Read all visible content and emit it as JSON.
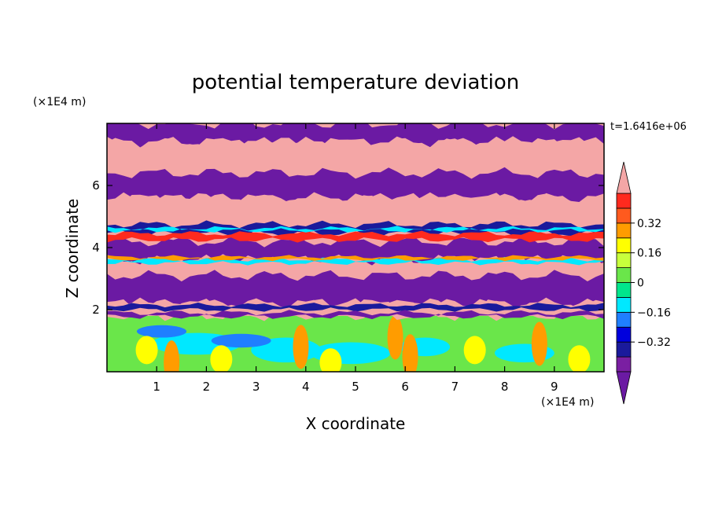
{
  "chart_data": {
    "type": "heatmap",
    "title": "potential temperature deviation",
    "xlabel": "X coordinate",
    "ylabel": "Z coordinate",
    "x_unit": "(×1E4 m)",
    "y_unit": "(×1E4 m)",
    "time_label": "t=1.6416e+06",
    "xlim": [
      0,
      10
    ],
    "ylim": [
      0,
      8
    ],
    "x_ticks": [
      1,
      2,
      3,
      4,
      5,
      6,
      7,
      8,
      9
    ],
    "y_ticks": [
      2,
      4,
      6
    ],
    "grid": false,
    "colorbar": {
      "position": "right",
      "tick_labels": [
        "0.32",
        "0.16",
        "0",
        "-0.16",
        "-0.32"
      ],
      "tick_values": [
        0.32,
        0.16,
        0,
        -0.16,
        -0.32
      ],
      "levels": [
        {
          "min": -0.48,
          "max": -0.4,
          "color": "#7a1fa2"
        },
        {
          "min": -0.4,
          "max": -0.32,
          "color": "#1a1a9c"
        },
        {
          "min": -0.32,
          "max": -0.24,
          "color": "#0000dd"
        },
        {
          "min": -0.24,
          "max": -0.16,
          "color": "#1f7fff"
        },
        {
          "min": -0.16,
          "max": -0.08,
          "color": "#00e8ff"
        },
        {
          "min": -0.08,
          "max": 0.0,
          "color": "#00e68c"
        },
        {
          "min": 0.0,
          "max": 0.08,
          "color": "#6ae64a"
        },
        {
          "min": 0.08,
          "max": 0.16,
          "color": "#c8ff3c"
        },
        {
          "min": 0.16,
          "max": 0.24,
          "color": "#ffff00"
        },
        {
          "min": 0.24,
          "max": 0.32,
          "color": "#ff9c00"
        },
        {
          "min": 0.32,
          "max": 0.4,
          "color": "#ff5a1e"
        },
        {
          "min": 0.4,
          "max": 0.48,
          "color": "#ff2a1e"
        }
      ],
      "under_color": "#6b1aa3",
      "over_color": "#f4a6a6"
    },
    "z_layers": [
      {
        "z_min": 7.4,
        "z_max": 8.0,
        "dominant": "purple",
        "value": -0.5
      },
      {
        "z_min": 6.4,
        "z_max": 7.4,
        "dominant": "pink",
        "value": 0.5
      },
      {
        "z_min": 5.6,
        "z_max": 6.4,
        "dominant": "purple",
        "value": -0.5
      },
      {
        "z_min": 4.8,
        "z_max": 5.6,
        "dominant": "pink",
        "value": 0.5
      },
      {
        "z_min": 4.2,
        "z_max": 4.8,
        "dominant": "mixed red/blue",
        "value": 0.1
      },
      {
        "z_min": 3.6,
        "z_max": 4.2,
        "dominant": "purple",
        "value": -0.5
      },
      {
        "z_min": 3.1,
        "z_max": 3.6,
        "dominant": "pink",
        "value": 0.5
      },
      {
        "z_min": 2.2,
        "z_max": 3.1,
        "dominant": "purple",
        "value": -0.5
      },
      {
        "z_min": 1.8,
        "z_max": 2.2,
        "dominant": "pink",
        "value": 0.5
      },
      {
        "z_min": 0.0,
        "z_max": 1.8,
        "dominant": "green/cyan",
        "value": 0.0
      }
    ]
  },
  "colors": {
    "purple": "#6b1aa3",
    "pink": "#f4a6a6",
    "navy": "#1a1a9c",
    "blue": "#1f7fff",
    "cyan": "#00e8ff",
    "green": "#6ae64a",
    "yellow": "#ffff00",
    "orange": "#ff9c00",
    "red": "#ff2a1e"
  }
}
